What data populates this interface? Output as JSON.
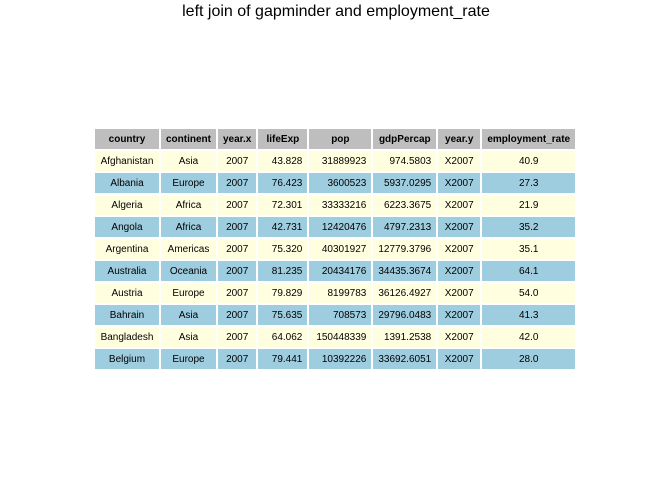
{
  "title": "left join of gapminder and employment_rate",
  "table": {
    "columns": [
      "country",
      "continent",
      "year.x",
      "lifeExp",
      "pop",
      "gdpPercap",
      "year.y",
      "employment_rate"
    ],
    "rows": [
      [
        "Afghanistan",
        "Asia",
        "2007",
        "43.828",
        "31889923",
        "974.5803",
        "X2007",
        "40.9"
      ],
      [
        "Albania",
        "Europe",
        "2007",
        "76.423",
        "3600523",
        "5937.0295",
        "X2007",
        "27.3"
      ],
      [
        "Algeria",
        "Africa",
        "2007",
        "72.301",
        "33333216",
        "6223.3675",
        "X2007",
        "21.9"
      ],
      [
        "Angola",
        "Africa",
        "2007",
        "42.731",
        "12420476",
        "4797.2313",
        "X2007",
        "35.2"
      ],
      [
        "Argentina",
        "Americas",
        "2007",
        "75.320",
        "40301927",
        "12779.3796",
        "X2007",
        "35.1"
      ],
      [
        "Australia",
        "Oceania",
        "2007",
        "81.235",
        "20434176",
        "34435.3674",
        "X2007",
        "64.1"
      ],
      [
        "Austria",
        "Europe",
        "2007",
        "79.829",
        "8199783",
        "36126.4927",
        "X2007",
        "54.0"
      ],
      [
        "Bahrain",
        "Asia",
        "2007",
        "75.635",
        "708573",
        "29796.0483",
        "X2007",
        "41.3"
      ],
      [
        "Bangladesh",
        "Asia",
        "2007",
        "64.062",
        "150448339",
        "1391.2538",
        "X2007",
        "42.0"
      ],
      [
        "Belgium",
        "Europe",
        "2007",
        "79.441",
        "10392226",
        "33692.6051",
        "X2007",
        "28.0"
      ]
    ]
  },
  "colors": {
    "header_bg": "#bebebe",
    "row_odd_bg": "#ffffe0",
    "row_even_bg": "#9ecde0"
  }
}
